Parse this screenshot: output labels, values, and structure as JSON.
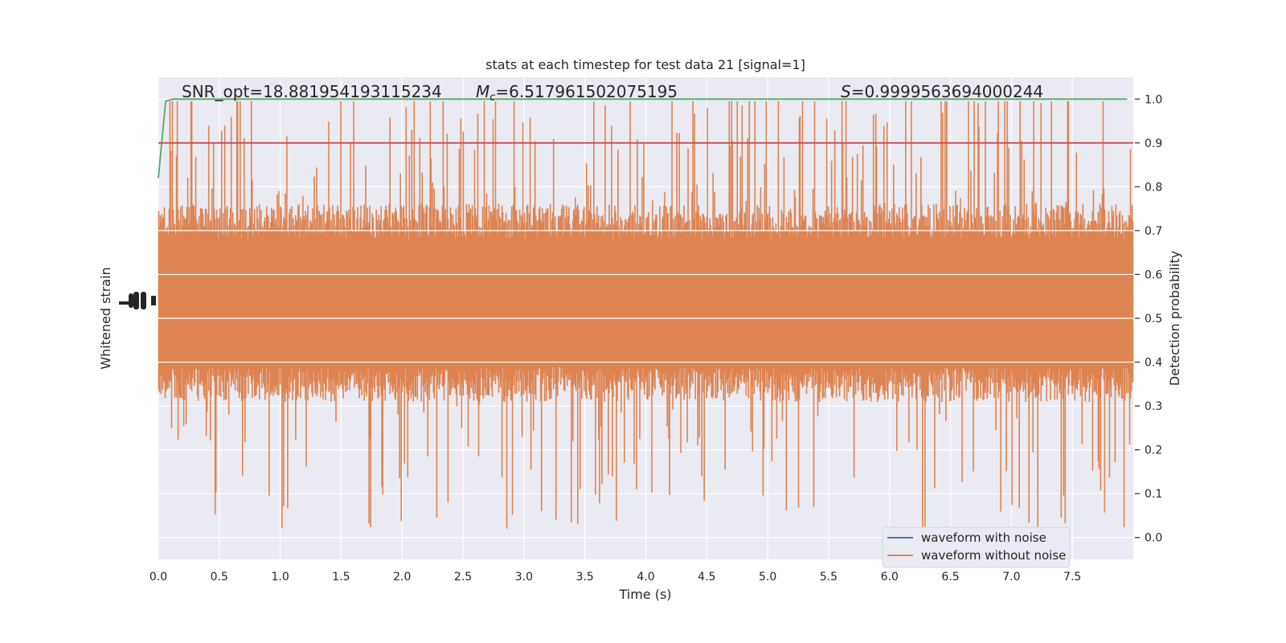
{
  "chart_data": {
    "type": "line",
    "title": "stats at each timestep for test data 21 [signal=1]",
    "xlabel": "Time (s)",
    "ylabel_left": "Whitened strain",
    "ylabel_right": "Detection probability",
    "xlim": [
      0.0,
      8.0
    ],
    "ylim_right": [
      -0.05,
      1.05
    ],
    "x_ticks": [
      "0.0",
      "0.5",
      "1.0",
      "1.5",
      "2.0",
      "2.5",
      "3.0",
      "3.5",
      "4.0",
      "4.5",
      "5.0",
      "5.5",
      "6.0",
      "6.5",
      "7.0",
      "7.5"
    ],
    "y_right_ticks": [
      "0.0",
      "0.1",
      "0.2",
      "0.3",
      "0.4",
      "0.5",
      "0.6",
      "0.7",
      "0.8",
      "0.9",
      "1.0"
    ],
    "annotations": {
      "snr": "SNR_opt=18.881954193115234",
      "mc_symbol": "M",
      "mc_subscript": "c",
      "mc_value": "=6.517961502075195",
      "s_symbol": "S",
      "s_value": "=0.9999563694000244"
    },
    "grid": true,
    "legend_position": "lower-right",
    "series": [
      {
        "name": "waveform with noise",
        "color": "#4c72b0",
        "description_level": 0.55
      },
      {
        "name": "waveform without noise",
        "color": "#dd8452",
        "noise": {
          "center": 0.535,
          "core_half_width": 0.17,
          "spike_top": 1.0,
          "spike_bottom": 0.0
        }
      },
      {
        "name": "detection probability",
        "color": "#55a868",
        "x": [
          0.0,
          0.06,
          0.12,
          7.95
        ],
        "y": [
          0.82,
          0.995,
          1.0,
          1.0
        ]
      },
      {
        "name": "threshold",
        "color": "#c44e52",
        "y": 0.9
      }
    ],
    "colors": {
      "axes_bg": "#eaeaf2",
      "grid": "#ffffff",
      "text": "#262626"
    }
  }
}
